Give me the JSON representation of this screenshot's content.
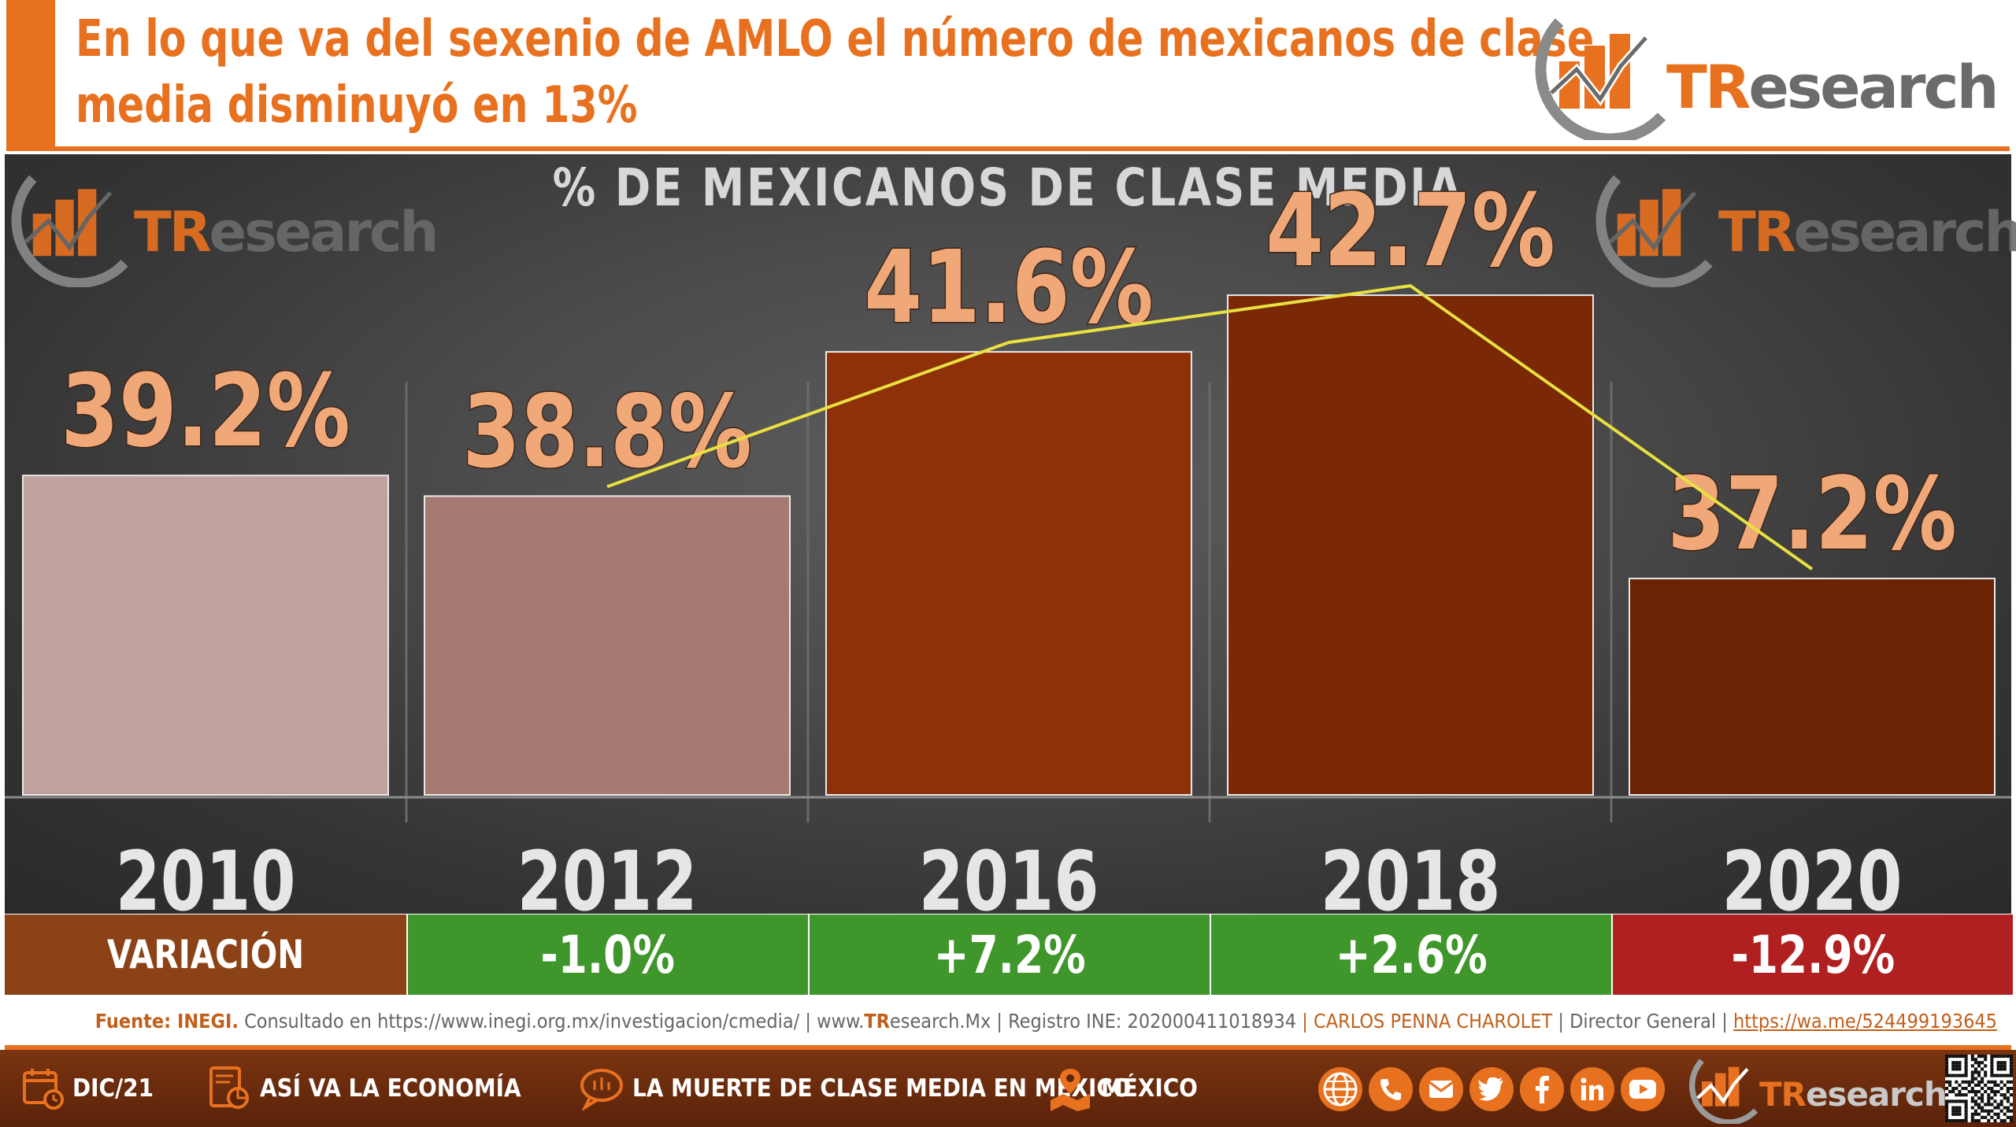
{
  "header": {
    "headline_line1": "En lo que va del sexenio de AMLO el número de mexicanos de clase",
    "headline_line2": "media disminuyó en 13%"
  },
  "brand": {
    "logo_tr": "TR",
    "logo_rest": "esearch"
  },
  "chart_data": {
    "type": "bar",
    "title": "% DE MEXICANOS DE CLASE MEDIA",
    "categories": [
      "2010",
      "2012",
      "2016",
      "2018",
      "2020"
    ],
    "values": [
      39.2,
      38.8,
      41.6,
      42.7,
      37.2
    ],
    "data_labels": [
      "39.2%",
      "38.8%",
      "41.6%",
      "42.7%",
      "37.2%"
    ],
    "bar_colors": [
      "#bfa19d",
      "#a57a73",
      "#8e3008",
      "#7a2806",
      "#6a2304"
    ],
    "trend_line": {
      "color": "#e8e040",
      "from_category": "2012",
      "to_category": "2020"
    },
    "ylim": [
      33,
      44
    ],
    "xlabel": "",
    "ylabel": ""
  },
  "variation": {
    "label": "VARIACIÓN",
    "label_color": "#8a4216",
    "cells": [
      {
        "text": "-1.0%",
        "color": "#3f962a"
      },
      {
        "text": "+7.2%",
        "color": "#3f962a"
      },
      {
        "text": "+2.6%",
        "color": "#3f962a"
      },
      {
        "text": "-12.9%",
        "color": "#b12020"
      }
    ]
  },
  "source": {
    "fuente_label": "Fuente: INEGI.",
    "consultado": "Consultado en",
    "url": "https://www.inegi.org.mx/investigacion/cmedia/",
    "sep1": "|",
    "www": "www.",
    "tr": "TR",
    "site_rest": "esearch.Mx",
    "registro": "| Registro INE: 202000411018934",
    "author": "| CARLOS PENNA CHAROLET",
    "role": "| Director General |",
    "whatsapp": "https://wa.me/524499193645"
  },
  "footer": {
    "date": "DIC/21",
    "section": "ASÍ VA LA ECONOMÍA",
    "topic": "LA MUERTE DE CLASE MEDIA EN MÉXICO",
    "region": "MÉXICO"
  },
  "colors": {
    "accent": "#e8711f",
    "label_orange": "#f0a878",
    "axis_year": "#e6e6e6"
  }
}
